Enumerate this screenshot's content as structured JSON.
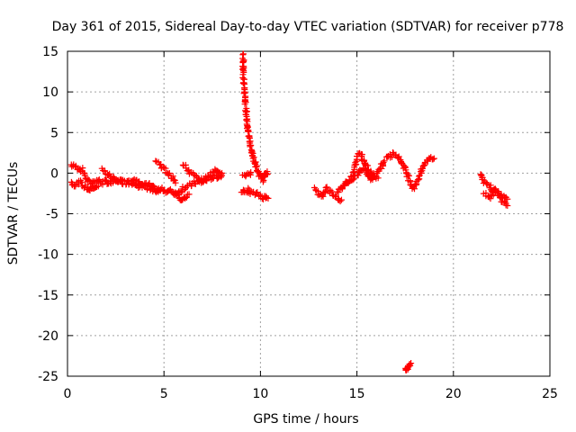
{
  "chart_data": {
    "type": "scatter",
    "title": "Day 361 of 2015, Sidereal Day-to-day VTEC variation (SDTVAR) for receiver p778",
    "xlabel": "GPS time / hours",
    "ylabel": "SDTVAR / TECUs",
    "xlim": [
      0,
      25
    ],
    "ylim": [
      -25,
      15
    ],
    "xticks": [
      0,
      5,
      10,
      15,
      20,
      25
    ],
    "yticks": [
      15,
      10,
      5,
      0,
      -5,
      -10,
      -15,
      -20,
      -25
    ],
    "xtick_labels": [
      "0",
      "5",
      "10",
      "15",
      "20",
      "25"
    ],
    "ytick_labels": [
      "15",
      "10",
      "5",
      "0",
      "-5",
      "-10",
      "-15",
      "-20",
      "-25"
    ],
    "grid": true,
    "marker": "+",
    "color": "#ff0000",
    "series": [
      {
        "name": "SDTVAR",
        "segments": [
          {
            "x": [
              0.2,
              0.4,
              0.6,
              0.8,
              1.0,
              1.2,
              1.4,
              1.6,
              1.8,
              2.0,
              2.2,
              2.4,
              2.6,
              2.8,
              3.0,
              3.2,
              3.4,
              3.6,
              3.8,
              4.0,
              4.2,
              4.4,
              4.6,
              4.8,
              5.0,
              5.2,
              5.4,
              5.6,
              5.8,
              6.0,
              6.2,
              6.4,
              6.6,
              6.8,
              7.0,
              7.2,
              7.4,
              7.6,
              7.8,
              8.0
            ],
            "y": [
              1.0,
              0.8,
              0.6,
              0.3,
              -0.8,
              -1.2,
              -1.0,
              -0.9,
              -1.2,
              -1.0,
              -1.3,
              -1.1,
              -0.9,
              -1.0,
              -1.2,
              -0.8,
              -0.7,
              -1.1,
              -1.3,
              -1.5,
              -1.4,
              -1.8,
              -2.0,
              -2.1,
              -2.0,
              -2.3,
              -2.2,
              -2.5,
              -2.4,
              -1.8,
              -1.6,
              -1.5,
              -1.2,
              -1.0,
              -1.0,
              -0.8,
              -0.6,
              -0.5,
              -0.4,
              -0.3
            ]
          },
          {
            "x": [
              0.2,
              0.4,
              0.6,
              0.8,
              1.0,
              1.2,
              1.4,
              1.6
            ],
            "y": [
              -1.2,
              -1.4,
              -1.1,
              -1.5,
              -1.8,
              -2.0,
              -1.7,
              -1.6
            ]
          },
          {
            "x": [
              1.8,
              2.0,
              2.3,
              2.6,
              2.9,
              3.2,
              3.5,
              3.8,
              4.1,
              4.4,
              4.7
            ],
            "y": [
              0.4,
              0.0,
              -0.5,
              -0.8,
              -1.0,
              -1.3,
              -1.5,
              -1.6,
              -1.7,
              -1.9,
              -2.3
            ]
          },
          {
            "x": [
              4.6,
              4.8,
              5.0,
              5.2,
              5.4,
              5.6
            ],
            "y": [
              1.5,
              1.0,
              0.5,
              0.0,
              -0.5,
              -1.2
            ]
          },
          {
            "x": [
              5.5,
              5.7,
              5.9,
              6.1,
              6.3
            ],
            "y": [
              -2.5,
              -2.8,
              -3.2,
              -2.9,
              -2.6
            ]
          },
          {
            "x": [
              6.0,
              6.2,
              6.4,
              6.6,
              6.8,
              7.0,
              7.2,
              7.4,
              7.6,
              7.8,
              8.0
            ],
            "y": [
              1.0,
              0.5,
              0.0,
              -0.4,
              -0.8,
              -1.0,
              -0.6,
              -0.2,
              0.2,
              0.4,
              0.0
            ]
          },
          {
            "x": [
              9.1,
              9.1,
              9.12,
              9.15,
              9.2,
              9.25,
              9.3,
              9.35,
              9.4,
              9.5,
              9.6,
              9.7,
              9.8,
              9.9,
              10.0,
              10.1,
              10.2,
              10.3,
              10.35
            ],
            "y": [
              14.8,
              13.5,
              12.0,
              10.5,
              9.0,
              7.8,
              6.5,
              5.5,
              4.5,
              3.2,
              2.2,
              1.3,
              0.6,
              0.0,
              -0.5,
              -0.8,
              -0.5,
              0.0,
              0.2
            ]
          },
          {
            "x": [
              9.0,
              9.2,
              9.4,
              9.6,
              9.8,
              10.0,
              10.2,
              10.4
            ],
            "y": [
              -2.2,
              -2.4,
              -2.1,
              -2.5,
              -2.6,
              -2.8,
              -3.0,
              -3.1
            ]
          },
          {
            "x": [
              9.1,
              9.3,
              9.5
            ],
            "y": [
              0.0,
              -0.3,
              0.1
            ]
          },
          {
            "x": [
              12.8,
              13.0,
              13.2,
              13.4,
              13.6,
              13.8,
              14.0,
              14.2
            ],
            "y": [
              -2.0,
              -2.5,
              -2.8,
              -1.8,
              -2.2,
              -2.6,
              -3.0,
              -3.3
            ]
          },
          {
            "x": [
              14.0,
              14.2,
              14.4,
              14.6,
              14.8,
              15.0,
              15.2,
              15.4,
              15.6,
              15.8,
              16.0,
              16.2,
              16.4,
              16.6,
              16.8,
              17.0,
              17.2,
              17.4,
              17.6,
              17.8,
              18.0,
              18.2,
              18.4,
              18.6,
              18.8,
              19.0
            ],
            "y": [
              -2.5,
              -1.8,
              -1.2,
              -0.8,
              0.0,
              2.0,
              2.5,
              1.0,
              -0.5,
              -0.8,
              0.0,
              0.5,
              1.5,
              2.0,
              2.2,
              2.5,
              1.8,
              1.0,
              0.0,
              -1.5,
              -1.8,
              -0.5,
              0.5,
              1.5,
              2.0,
              1.8
            ]
          },
          {
            "x": [
              14.3,
              14.6,
              14.9,
              15.2,
              15.5,
              15.8,
              16.1
            ],
            "y": [
              -1.5,
              -1.0,
              -0.5,
              0.5,
              0.8,
              -0.2,
              -0.6
            ]
          },
          {
            "x": [
              17.5,
              17.6,
              17.7,
              17.8
            ],
            "y": [
              -24.3,
              -23.9,
              -23.6,
              -23.4
            ]
          },
          {
            "x": [
              21.4,
              21.6,
              21.8,
              22.0,
              22.2,
              22.4,
              22.6,
              22.8
            ],
            "y": [
              0.0,
              -1.0,
              -1.5,
              -2.0,
              -2.5,
              -3.0,
              -3.5,
              -4.0
            ]
          },
          {
            "x": [
              21.6,
              21.9,
              22.2,
              22.5,
              22.8
            ],
            "y": [
              -2.5,
              -3.0,
              -2.0,
              -2.8,
              -3.2
            ]
          }
        ]
      }
    ]
  }
}
